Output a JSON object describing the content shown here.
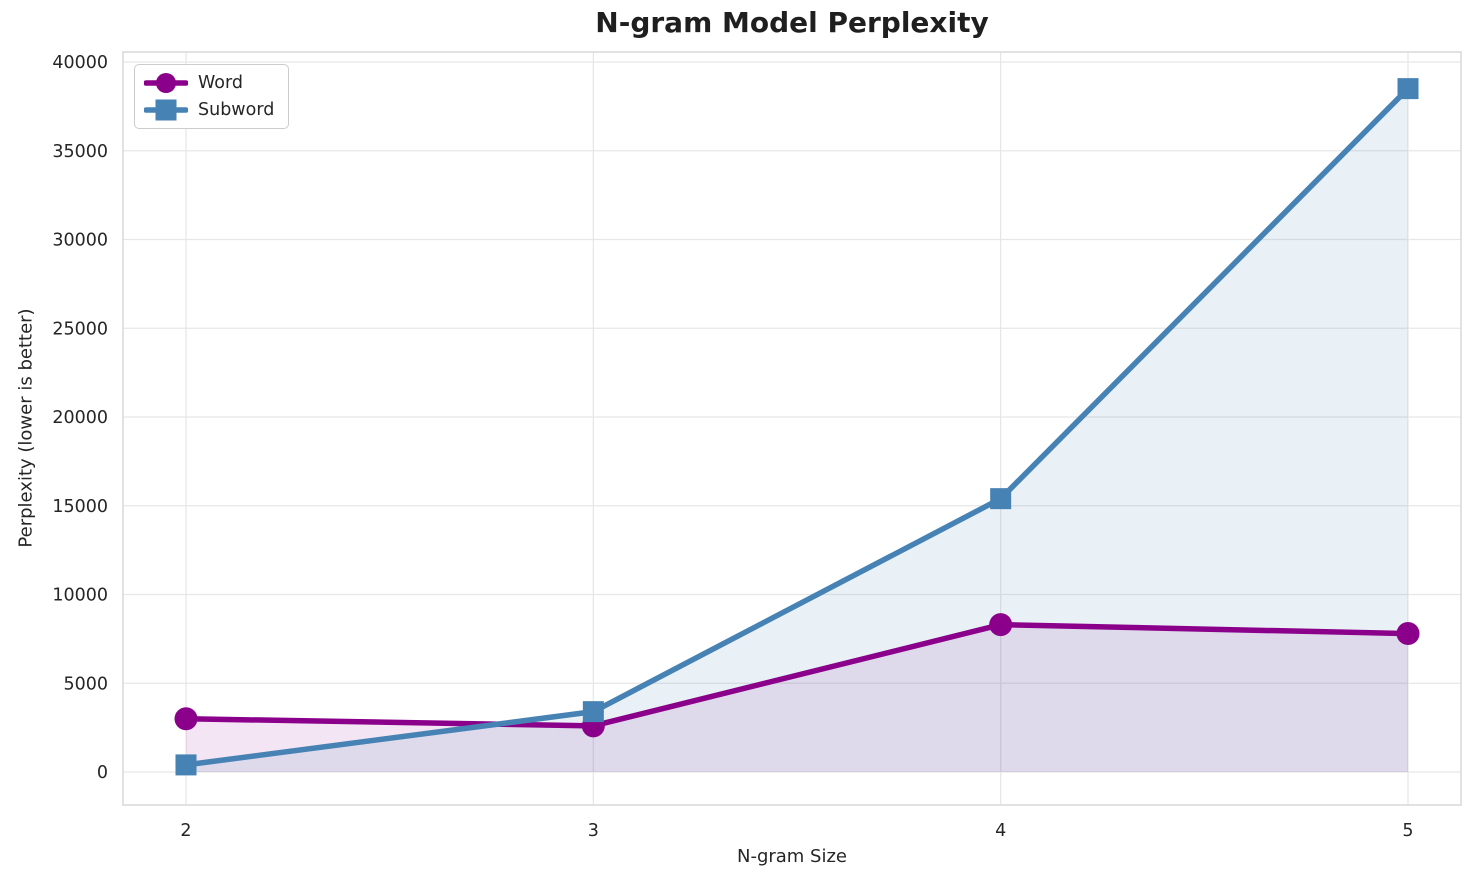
{
  "chart_data": {
    "type": "line",
    "title": "N-gram Model Perplexity",
    "xlabel": "N-gram Size",
    "ylabel": "Perplexity (lower is better)",
    "x": [
      2,
      3,
      4,
      5
    ],
    "xticks": [
      2,
      3,
      4,
      5
    ],
    "yticks": [
      0,
      5000,
      10000,
      15000,
      20000,
      25000,
      30000,
      35000,
      40000
    ],
    "ylim": [
      0,
      40000
    ],
    "grid": true,
    "legend_position": "upper-left",
    "series": [
      {
        "name": "Word",
        "marker": "circle",
        "color": "#8B008B",
        "fill_opacity": 0.1,
        "values": [
          3000,
          2600,
          8300,
          7800
        ]
      },
      {
        "name": "Subword",
        "marker": "square",
        "color": "#4682B4",
        "fill_opacity": 0.12,
        "values": [
          400,
          3400,
          15400,
          38500
        ]
      }
    ]
  }
}
